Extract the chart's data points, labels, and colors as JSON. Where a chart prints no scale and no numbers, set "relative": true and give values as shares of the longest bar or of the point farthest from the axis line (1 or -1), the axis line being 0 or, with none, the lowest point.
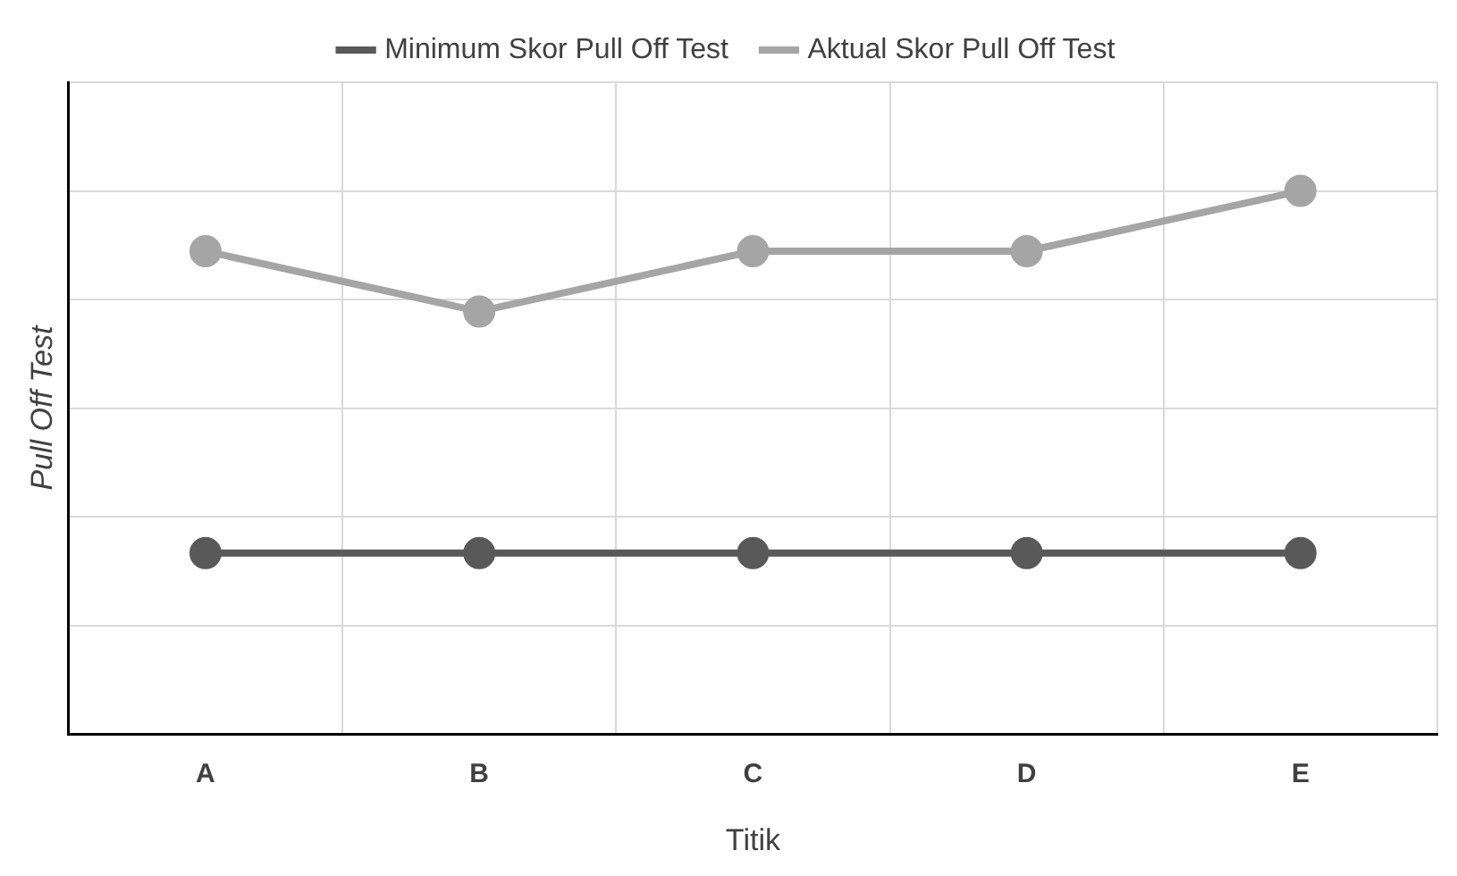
{
  "chart_data": {
    "type": "line",
    "xlabel": "Titik",
    "ylabel": "Pull Off Test",
    "categories": [
      "A",
      "B",
      "C",
      "D",
      "E"
    ],
    "relative": true,
    "grid": true,
    "legend": "top",
    "marker": "circle",
    "line_style": "solid",
    "series": [
      {
        "name": "Minimum Skor Pull Off Test",
        "color": "#595959",
        "values": [
          0.333,
          0.333,
          0.333,
          0.333,
          0.333
        ]
      },
      {
        "name": "Aktual Skor Pull Off Test",
        "color": "#a5a5a5",
        "values": [
          0.889,
          0.778,
          0.889,
          0.889,
          1
        ]
      }
    ]
  }
}
